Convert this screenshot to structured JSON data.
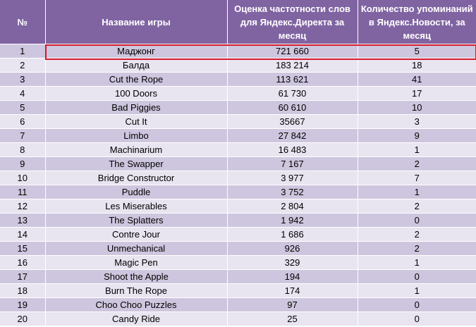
{
  "headers": [
    "№",
    "Название игры",
    "Оценка частотности слов для Яндекс.Директа за месяц",
    "Количество упоминаний в Яндекс.Новости, за месяц"
  ],
  "rows": [
    [
      "1",
      "Маджонг",
      "721 660",
      "5"
    ],
    [
      "2",
      "Балда",
      "183 214",
      "18"
    ],
    [
      "3",
      "Cut the Rope",
      "113 621",
      "41"
    ],
    [
      "4",
      "100 Doors",
      "61 730",
      "17"
    ],
    [
      "5",
      "Bad Piggies",
      "60 610",
      "10"
    ],
    [
      "6",
      "Cut It",
      "35667",
      "3"
    ],
    [
      "7",
      "Limbo",
      "27 842",
      "9"
    ],
    [
      "8",
      "Machinarium",
      "16 483",
      "1"
    ],
    [
      "9",
      "The Swapper",
      "7 167",
      "2"
    ],
    [
      "10",
      "Bridge Constructor",
      "3 977",
      "7"
    ],
    [
      "11",
      "Puddle",
      "3 752",
      "1"
    ],
    [
      "12",
      "Les Miserables",
      "2 804",
      "2"
    ],
    [
      "13",
      "The Splatters",
      "1 942",
      "0"
    ],
    [
      "14",
      "Contre Jour",
      "1 686",
      "2"
    ],
    [
      "15",
      "Unmechanical",
      "926",
      "2"
    ],
    [
      "16",
      "Magic Pen",
      "329",
      "1"
    ],
    [
      "17",
      "Shoot the Apple",
      "194",
      "0"
    ],
    [
      "18",
      "Burn The Rope",
      "174",
      "1"
    ],
    [
      "19",
      "Choo Choo Puzzles",
      "97",
      "0"
    ],
    [
      "20",
      "Candy Ride",
      "25",
      "0"
    ]
  ],
  "colors": {
    "header_bg": "#8064a2",
    "row_odd": "#cec6de",
    "row_even": "#e8e4f0",
    "highlight_border": "#d2182a"
  }
}
